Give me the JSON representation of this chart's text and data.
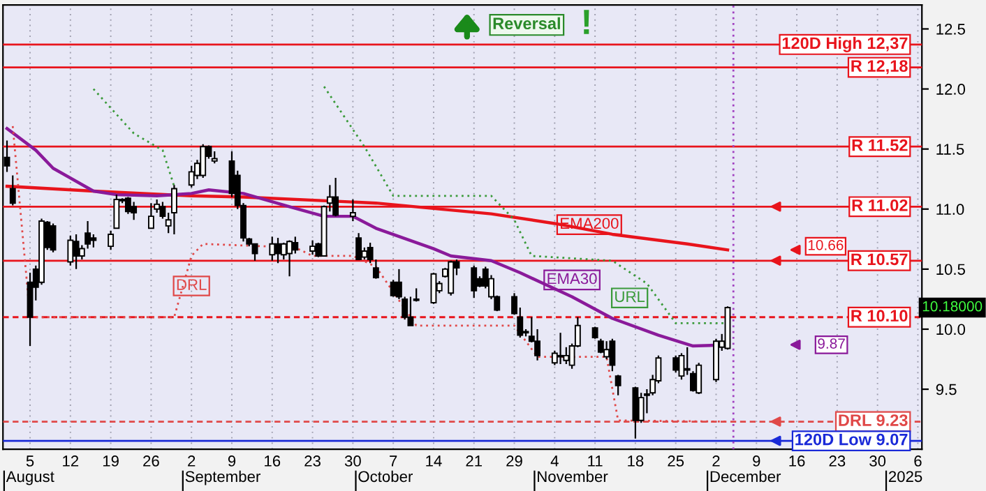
{
  "chart_data": {
    "type": "candlestick",
    "x": [
      "2024-08-01",
      "2024-08-02",
      "2024-08-05",
      "2024-08-06",
      "2024-08-07",
      "2024-08-08",
      "2024-08-09",
      "2024-08-12",
      "2024-08-13",
      "2024-08-14",
      "2024-08-15",
      "2024-08-16",
      "2024-08-19",
      "2024-08-20",
      "2024-08-21",
      "2024-08-22",
      "2024-08-23",
      "2024-08-26",
      "2024-08-27",
      "2024-08-28",
      "2024-08-29",
      "2024-08-30",
      "2024-09-02",
      "2024-09-03",
      "2024-09-04",
      "2024-09-05",
      "2024-09-06",
      "2024-09-09",
      "2024-09-10",
      "2024-09-11",
      "2024-09-12",
      "2024-09-13",
      "2024-09-16",
      "2024-09-17",
      "2024-09-18",
      "2024-09-19",
      "2024-09-20",
      "2024-09-23",
      "2024-09-24",
      "2024-09-25",
      "2024-09-26",
      "2024-09-27",
      "2024-09-30",
      "2024-10-01",
      "2024-10-02",
      "2024-10-03",
      "2024-10-04",
      "2024-10-07",
      "2024-10-08",
      "2024-10-09",
      "2024-10-10",
      "2024-10-11",
      "2024-10-14",
      "2024-10-15",
      "2024-10-16",
      "2024-10-17",
      "2024-10-18",
      "2024-10-21",
      "2024-10-22",
      "2024-10-23",
      "2024-10-24",
      "2024-10-25",
      "2024-10-28",
      "2024-10-29",
      "2024-10-30",
      "2024-10-31",
      "2024-11-01",
      "2024-11-04",
      "2024-11-05",
      "2024-11-06",
      "2024-11-07",
      "2024-11-08",
      "2024-11-11",
      "2024-11-12",
      "2024-11-13",
      "2024-11-14",
      "2024-11-15",
      "2024-11-18",
      "2024-11-19",
      "2024-11-20",
      "2024-11-21",
      "2024-11-22",
      "2024-11-25",
      "2024-11-26",
      "2024-11-27",
      "2024-11-28",
      "2024-11-29",
      "2024-12-02",
      "2024-12-03",
      "2024-12-04"
    ],
    "ohlc": [
      [
        11.43,
        11.57,
        11.31,
        11.36
      ],
      [
        11.17,
        11.28,
        11.03,
        11.05
      ],
      [
        10.39,
        10.47,
        9.86,
        10.1
      ],
      [
        10.5,
        10.53,
        10.24,
        10.35
      ],
      [
        10.39,
        10.92,
        10.37,
        10.9
      ],
      [
        10.89,
        10.9,
        10.66,
        10.68
      ],
      [
        10.86,
        10.88,
        10.64,
        10.66
      ],
      [
        10.56,
        10.78,
        10.53,
        10.74
      ],
      [
        10.73,
        10.79,
        10.5,
        10.61
      ],
      [
        10.61,
        10.7,
        10.58,
        10.67
      ],
      [
        10.8,
        10.9,
        10.67,
        10.71
      ],
      [
        10.76,
        10.79,
        10.68,
        10.74
      ],
      [
        10.69,
        10.82,
        10.66,
        10.79
      ],
      [
        10.84,
        11.12,
        10.84,
        11.08
      ],
      [
        11.08,
        11.09,
        11.05,
        11.07
      ],
      [
        11.09,
        11.1,
        10.96,
        10.98
      ],
      [
        11.02,
        11.06,
        10.91,
        10.97
      ],
      [
        10.84,
        11.05,
        10.84,
        10.94
      ],
      [
        11.0,
        11.08,
        10.97,
        11.04
      ],
      [
        11.02,
        11.06,
        10.92,
        10.94
      ],
      [
        10.86,
        10.97,
        10.8,
        10.91
      ],
      [
        10.97,
        11.2,
        10.79,
        11.17
      ],
      [
        11.2,
        11.36,
        11.18,
        11.31
      ],
      [
        11.28,
        11.41,
        11.25,
        11.38
      ],
      [
        11.28,
        11.54,
        11.26,
        11.52
      ],
      [
        11.52,
        11.53,
        11.42,
        11.44
      ],
      [
        11.4,
        11.48,
        11.38,
        11.42
      ],
      [
        11.4,
        11.48,
        11.1,
        11.13
      ],
      [
        11.28,
        11.32,
        11.0,
        11.03
      ],
      [
        11.03,
        11.05,
        10.73,
        10.76
      ],
      [
        10.75,
        10.76,
        10.69,
        10.71
      ],
      [
        10.71,
        10.71,
        10.57,
        10.63
      ],
      [
        10.62,
        10.77,
        10.57,
        10.71
      ],
      [
        10.71,
        10.76,
        10.55,
        10.63
      ],
      [
        10.62,
        10.72,
        10.58,
        10.71
      ],
      [
        10.63,
        10.74,
        10.44,
        10.73
      ],
      [
        10.72,
        10.77,
        10.63,
        10.66
      ],
      [
        10.65,
        10.74,
        10.62,
        10.69
      ],
      [
        10.71,
        10.72,
        10.6,
        10.61
      ],
      [
        10.61,
        11.03,
        10.61,
        11.02
      ],
      [
        11.05,
        11.2,
        10.98,
        11.1
      ],
      [
        11.1,
        11.26,
        10.94,
        10.95
      ],
      [
        10.94,
        11.08,
        10.9,
        10.97
      ],
      [
        10.76,
        10.8,
        10.58,
        10.58
      ],
      [
        10.6,
        10.68,
        10.58,
        10.65
      ],
      [
        10.68,
        10.72,
        10.55,
        10.58
      ],
      [
        10.51,
        10.58,
        10.42,
        10.43
      ],
      [
        10.39,
        10.41,
        10.27,
        10.28
      ],
      [
        10.39,
        10.5,
        10.25,
        10.27
      ],
      [
        10.25,
        10.27,
        10.08,
        10.1
      ],
      [
        10.1,
        10.27,
        10.03,
        10.03
      ],
      [
        10.24,
        10.34,
        10.23,
        10.25
      ],
      [
        10.22,
        10.47,
        10.21,
        10.46
      ],
      [
        10.32,
        10.4,
        10.3,
        10.38
      ],
      [
        10.44,
        10.51,
        10.43,
        10.5
      ],
      [
        10.3,
        10.57,
        10.28,
        10.56
      ],
      [
        10.56,
        10.58,
        10.45,
        10.51
      ],
      [
        10.51,
        10.53,
        10.26,
        10.32
      ],
      [
        10.42,
        10.44,
        10.35,
        10.36
      ],
      [
        10.5,
        10.52,
        10.34,
        10.36
      ],
      [
        10.27,
        10.45,
        10.25,
        10.42
      ],
      [
        10.27,
        10.28,
        10.15,
        10.16
      ],
      [
        10.27,
        10.3,
        10.12,
        10.13
      ],
      [
        10.1,
        10.18,
        9.93,
        9.95
      ],
      [
        9.97,
        10.0,
        9.94,
        9.98
      ],
      [
        9.94,
        10.1,
        9.89,
        9.9
      ],
      [
        9.9,
        10.0,
        9.74,
        9.78
      ],
      [
        9.72,
        9.82,
        9.7,
        9.8
      ],
      [
        9.78,
        9.97,
        9.71,
        9.77
      ],
      [
        9.74,
        9.85,
        9.71,
        9.78
      ],
      [
        9.7,
        9.88,
        9.67,
        9.86
      ],
      [
        9.86,
        10.1,
        9.85,
        10.03
      ],
      [
        10.01,
        10.02,
        9.92,
        9.93
      ],
      [
        9.9,
        9.92,
        9.8,
        9.81
      ],
      [
        9.77,
        9.9,
        9.75,
        9.83
      ],
      [
        9.9,
        9.92,
        9.65,
        9.7
      ],
      [
        9.61,
        9.62,
        9.45,
        9.53
      ],
      [
        9.51,
        9.52,
        9.09,
        9.24
      ],
      [
        9.24,
        9.47,
        9.22,
        9.43
      ],
      [
        9.45,
        9.5,
        9.3,
        9.46
      ],
      [
        9.47,
        9.62,
        9.45,
        9.58
      ],
      [
        9.57,
        9.78,
        9.55,
        9.76
      ],
      [
        9.76,
        9.78,
        9.64,
        9.66
      ],
      [
        9.61,
        9.8,
        9.58,
        9.78
      ],
      [
        9.67,
        9.85,
        9.62,
        9.66
      ],
      [
        9.63,
        9.65,
        9.48,
        9.49
      ],
      [
        9.47,
        9.72,
        9.46,
        9.7
      ],
      [
        9.58,
        9.92,
        9.56,
        9.9
      ],
      [
        9.85,
        9.96,
        9.82,
        9.9
      ],
      [
        9.84,
        10.19,
        9.83,
        10.18
      ]
    ],
    "series": [
      {
        "name": "EMA200",
        "type": "line",
        "color": "#e8141c",
        "line_style": "solid",
        "x": [
          "2024-08-01",
          "2024-08-16",
          "2024-09-02",
          "2024-09-11",
          "2024-10-04",
          "2024-10-24",
          "2024-11-04",
          "2024-11-14",
          "2024-11-27",
          "2024-12-04"
        ],
        "values": [
          11.19,
          11.15,
          11.11,
          11.1,
          11.05,
          10.96,
          10.88,
          10.79,
          10.71,
          10.66
        ]
      },
      {
        "name": "EMA30",
        "type": "line",
        "color": "#8a1a9a",
        "line_style": "solid",
        "x": [
          "2024-08-01",
          "2024-08-06",
          "2024-08-09",
          "2024-08-16",
          "2024-08-20",
          "2024-08-27",
          "2024-09-02",
          "2024-09-05",
          "2024-09-11",
          "2024-09-19",
          "2024-09-25",
          "2024-09-30",
          "2024-10-04",
          "2024-10-14",
          "2024-10-17",
          "2024-10-24",
          "2024-10-29",
          "2024-11-07",
          "2024-11-14",
          "2024-11-22",
          "2024-11-28",
          "2024-12-04"
        ],
        "values": [
          11.67,
          11.49,
          11.34,
          11.15,
          11.12,
          11.11,
          11.13,
          11.16,
          11.13,
          11.02,
          10.94,
          10.94,
          10.84,
          10.67,
          10.61,
          10.57,
          10.47,
          10.27,
          10.09,
          9.95,
          9.86,
          9.87
        ]
      },
      {
        "name": "URL",
        "type": "line",
        "color": "#3a9a3a",
        "line_style": "dotted",
        "x": [
          "2024-08-16",
          "2024-08-23",
          "2024-08-28",
          "2024-08-30",
          "2024-09-02",
          "2024-09-25",
          "2024-10-02",
          "2024-10-07",
          "2024-10-24",
          "2024-10-28",
          "2024-10-31",
          "2024-11-14",
          "2024-11-20",
          "2024-11-25",
          "2024-12-04"
        ],
        "values": [
          12.0,
          11.63,
          11.49,
          11.19,
          null,
          12.02,
          11.52,
          11.11,
          11.11,
          10.91,
          10.61,
          10.57,
          10.38,
          10.05,
          10.05
        ]
      },
      {
        "name": "DRL",
        "type": "line",
        "color": "#e04848",
        "line_style": "dotted",
        "x": [
          "2024-08-02",
          "2024-08-05",
          "2024-08-30",
          "2024-09-02",
          "2024-09-04",
          "2024-09-20",
          "2024-09-23",
          "2024-09-30",
          "2024-10-04",
          "2024-10-10",
          "2024-10-11",
          "2024-10-28",
          "2024-11-01",
          "2024-11-13",
          "2024-11-15",
          "2024-12-04"
        ],
        "values": [
          11.69,
          10.1,
          10.1,
          10.61,
          10.71,
          10.68,
          10.61,
          10.61,
          10.52,
          10.1,
          10.03,
          10.03,
          9.77,
          9.77,
          9.24,
          9.23
        ]
      }
    ],
    "xlim": [
      "2024-08-01",
      "2025-01-06"
    ],
    "xticks": [
      {
        "value": "2024-08-05",
        "label": "5"
      },
      {
        "value": "2024-08-12",
        "label": "12"
      },
      {
        "value": "2024-08-19",
        "label": "19"
      },
      {
        "value": "2024-08-26",
        "label": "26"
      },
      {
        "value": "2024-09-02",
        "label": "2"
      },
      {
        "value": "2024-09-09",
        "label": "9"
      },
      {
        "value": "2024-09-16",
        "label": "16"
      },
      {
        "value": "2024-09-23",
        "label": "23"
      },
      {
        "value": "2024-09-30",
        "label": "30"
      },
      {
        "value": "2024-10-07",
        "label": "7"
      },
      {
        "value": "2024-10-14",
        "label": "14"
      },
      {
        "value": "2024-10-21",
        "label": "21"
      },
      {
        "value": "2024-10-28",
        "label": "29"
      },
      {
        "value": "2024-11-04",
        "label": "4"
      },
      {
        "value": "2024-11-11",
        "label": "11"
      },
      {
        "value": "2024-11-18",
        "label": "18"
      },
      {
        "value": "2024-11-25",
        "label": "25"
      },
      {
        "value": "2024-12-02",
        "label": "2"
      },
      {
        "value": "2024-12-09",
        "label": "9"
      },
      {
        "value": "2024-12-16",
        "label": "16"
      },
      {
        "value": "2024-12-23",
        "label": "23"
      },
      {
        "value": "2024-12-30",
        "label": "30"
      },
      {
        "value": "2025-01-06",
        "label": "6"
      }
    ],
    "ylim": [
      9.0,
      12.7
    ],
    "yticks": [
      9.5,
      {
        "value": 10,
        "label": "10.0"
      },
      10.5,
      {
        "value": 11,
        "label": "11.0"
      },
      11.5,
      {
        "value": 12,
        "label": "12.0"
      },
      12.5
    ],
    "ref_lines": [
      {
        "axis": "y",
        "value": 12.37,
        "label": "120D High 12,37",
        "color": "#e8141c",
        "line_style": "solid"
      },
      {
        "axis": "y",
        "value": 12.18,
        "label": "R 12,18",
        "color": "#e8141c",
        "line_style": "solid"
      },
      {
        "axis": "y",
        "value": 11.52,
        "label": "R 11.52",
        "color": "#e8141c",
        "line_style": "solid"
      },
      {
        "axis": "y",
        "value": 11.02,
        "label": "R 11.02",
        "color": "#e8141c",
        "line_style": "solid"
      },
      {
        "axis": "y",
        "value": 10.57,
        "label": "R 10.57",
        "color": "#e8141c",
        "line_style": "solid"
      },
      {
        "axis": "y",
        "value": 10.1,
        "label": "R 10.10",
        "color": "#e8141c",
        "line_style": "dashed"
      },
      {
        "axis": "y",
        "value": 9.23,
        "label": "DRL 9.23",
        "color": "#e04848",
        "line_style": "dashed"
      },
      {
        "axis": "y",
        "value": 9.07,
        "label": "120D Low 9.07",
        "color": "#1a2ad8",
        "line_style": "solid"
      },
      {
        "axis": "x",
        "value": "2024-12-05",
        "color": "#a040c0",
        "line_style": "dotted"
      }
    ],
    "annotations": [
      "Reversal",
      "!",
      "August",
      "September",
      "October",
      "November",
      "December",
      "2025",
      "10.66",
      "9.87",
      "10.18000"
    ],
    "grid": "x",
    "legend": false
  }
}
